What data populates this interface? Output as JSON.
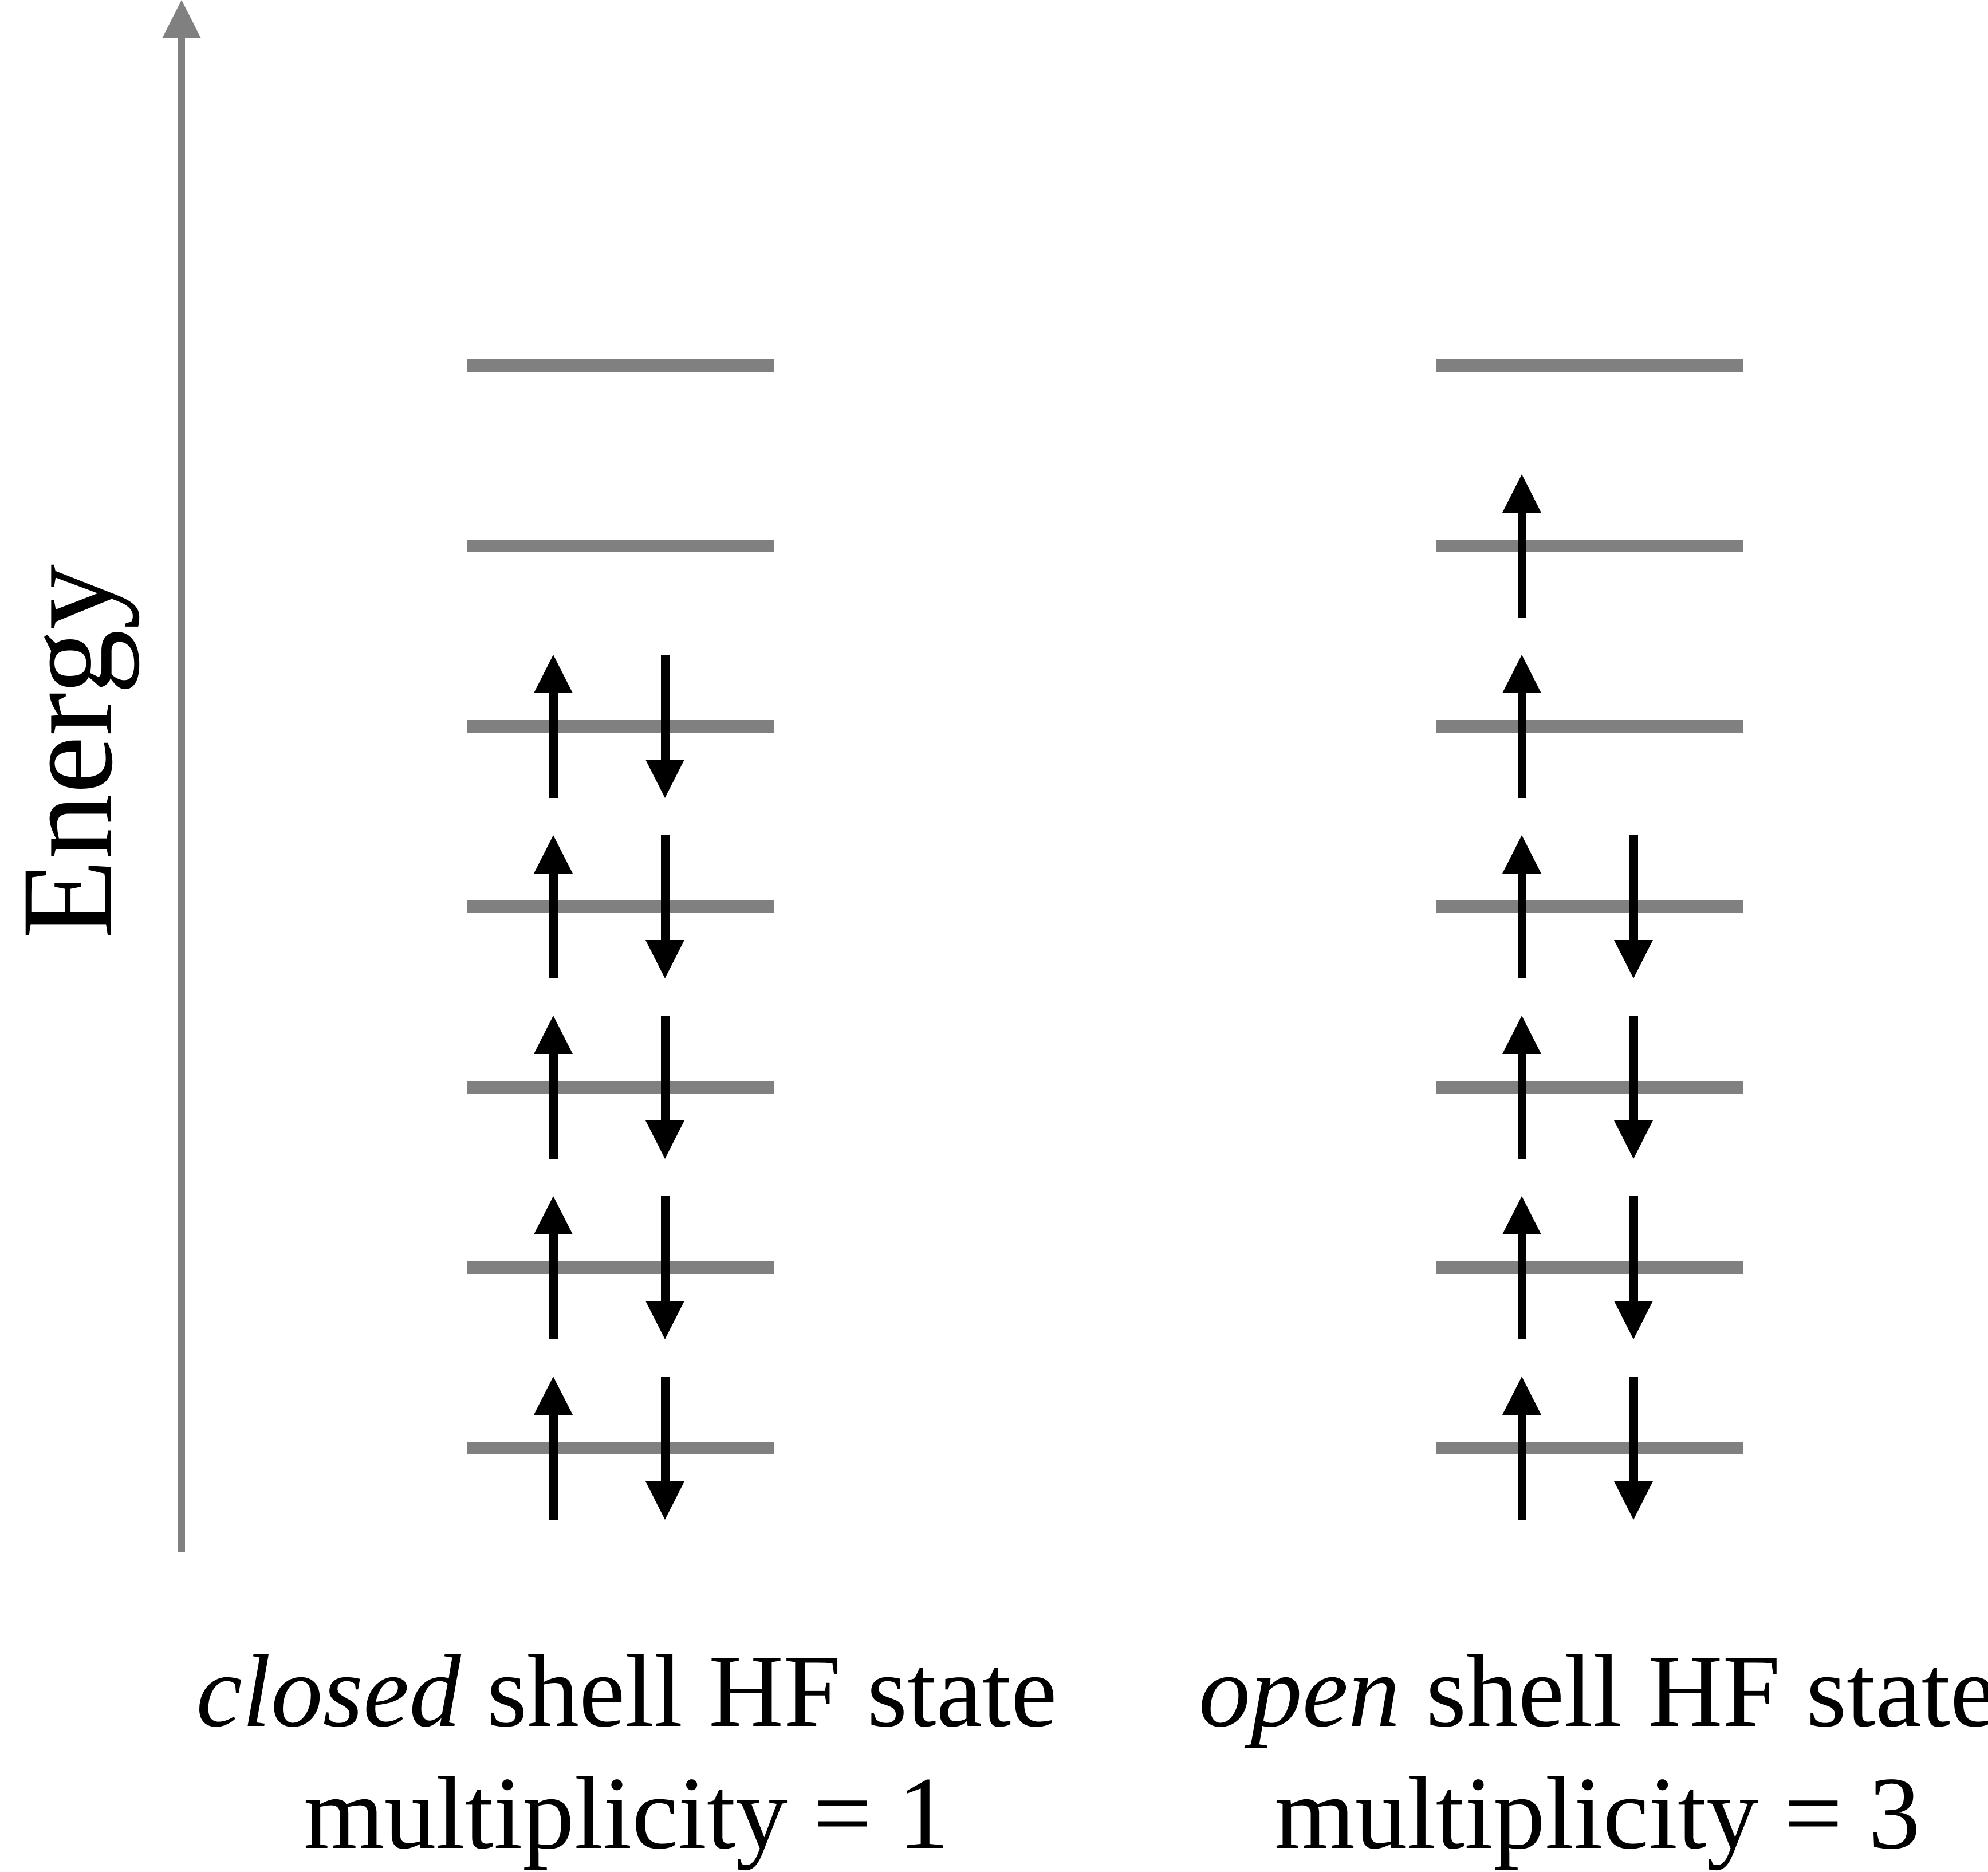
{
  "energy_axis": {
    "label": "Energy"
  },
  "colors": {
    "level_line": "#808080",
    "axis": "#808080",
    "arrow": "#000000",
    "text": "#000000",
    "background": "#ffffff"
  },
  "diagrams": [
    {
      "id": "closed-shell",
      "levels_top_to_bottom": [
        "empty",
        "empty",
        "paired",
        "paired",
        "paired",
        "paired",
        "paired"
      ],
      "caption": {
        "italic_word": "closed",
        "line1_rest": " shell HF state",
        "line2": "multiplicity = 1"
      }
    },
    {
      "id": "open-shell",
      "levels_top_to_bottom": [
        "empty",
        "single-up",
        "single-up",
        "paired",
        "paired",
        "paired",
        "paired"
      ],
      "caption": {
        "italic_word": "open",
        "line1_rest": " shell HF state",
        "line2": "multiplicity = 3"
      }
    }
  ]
}
